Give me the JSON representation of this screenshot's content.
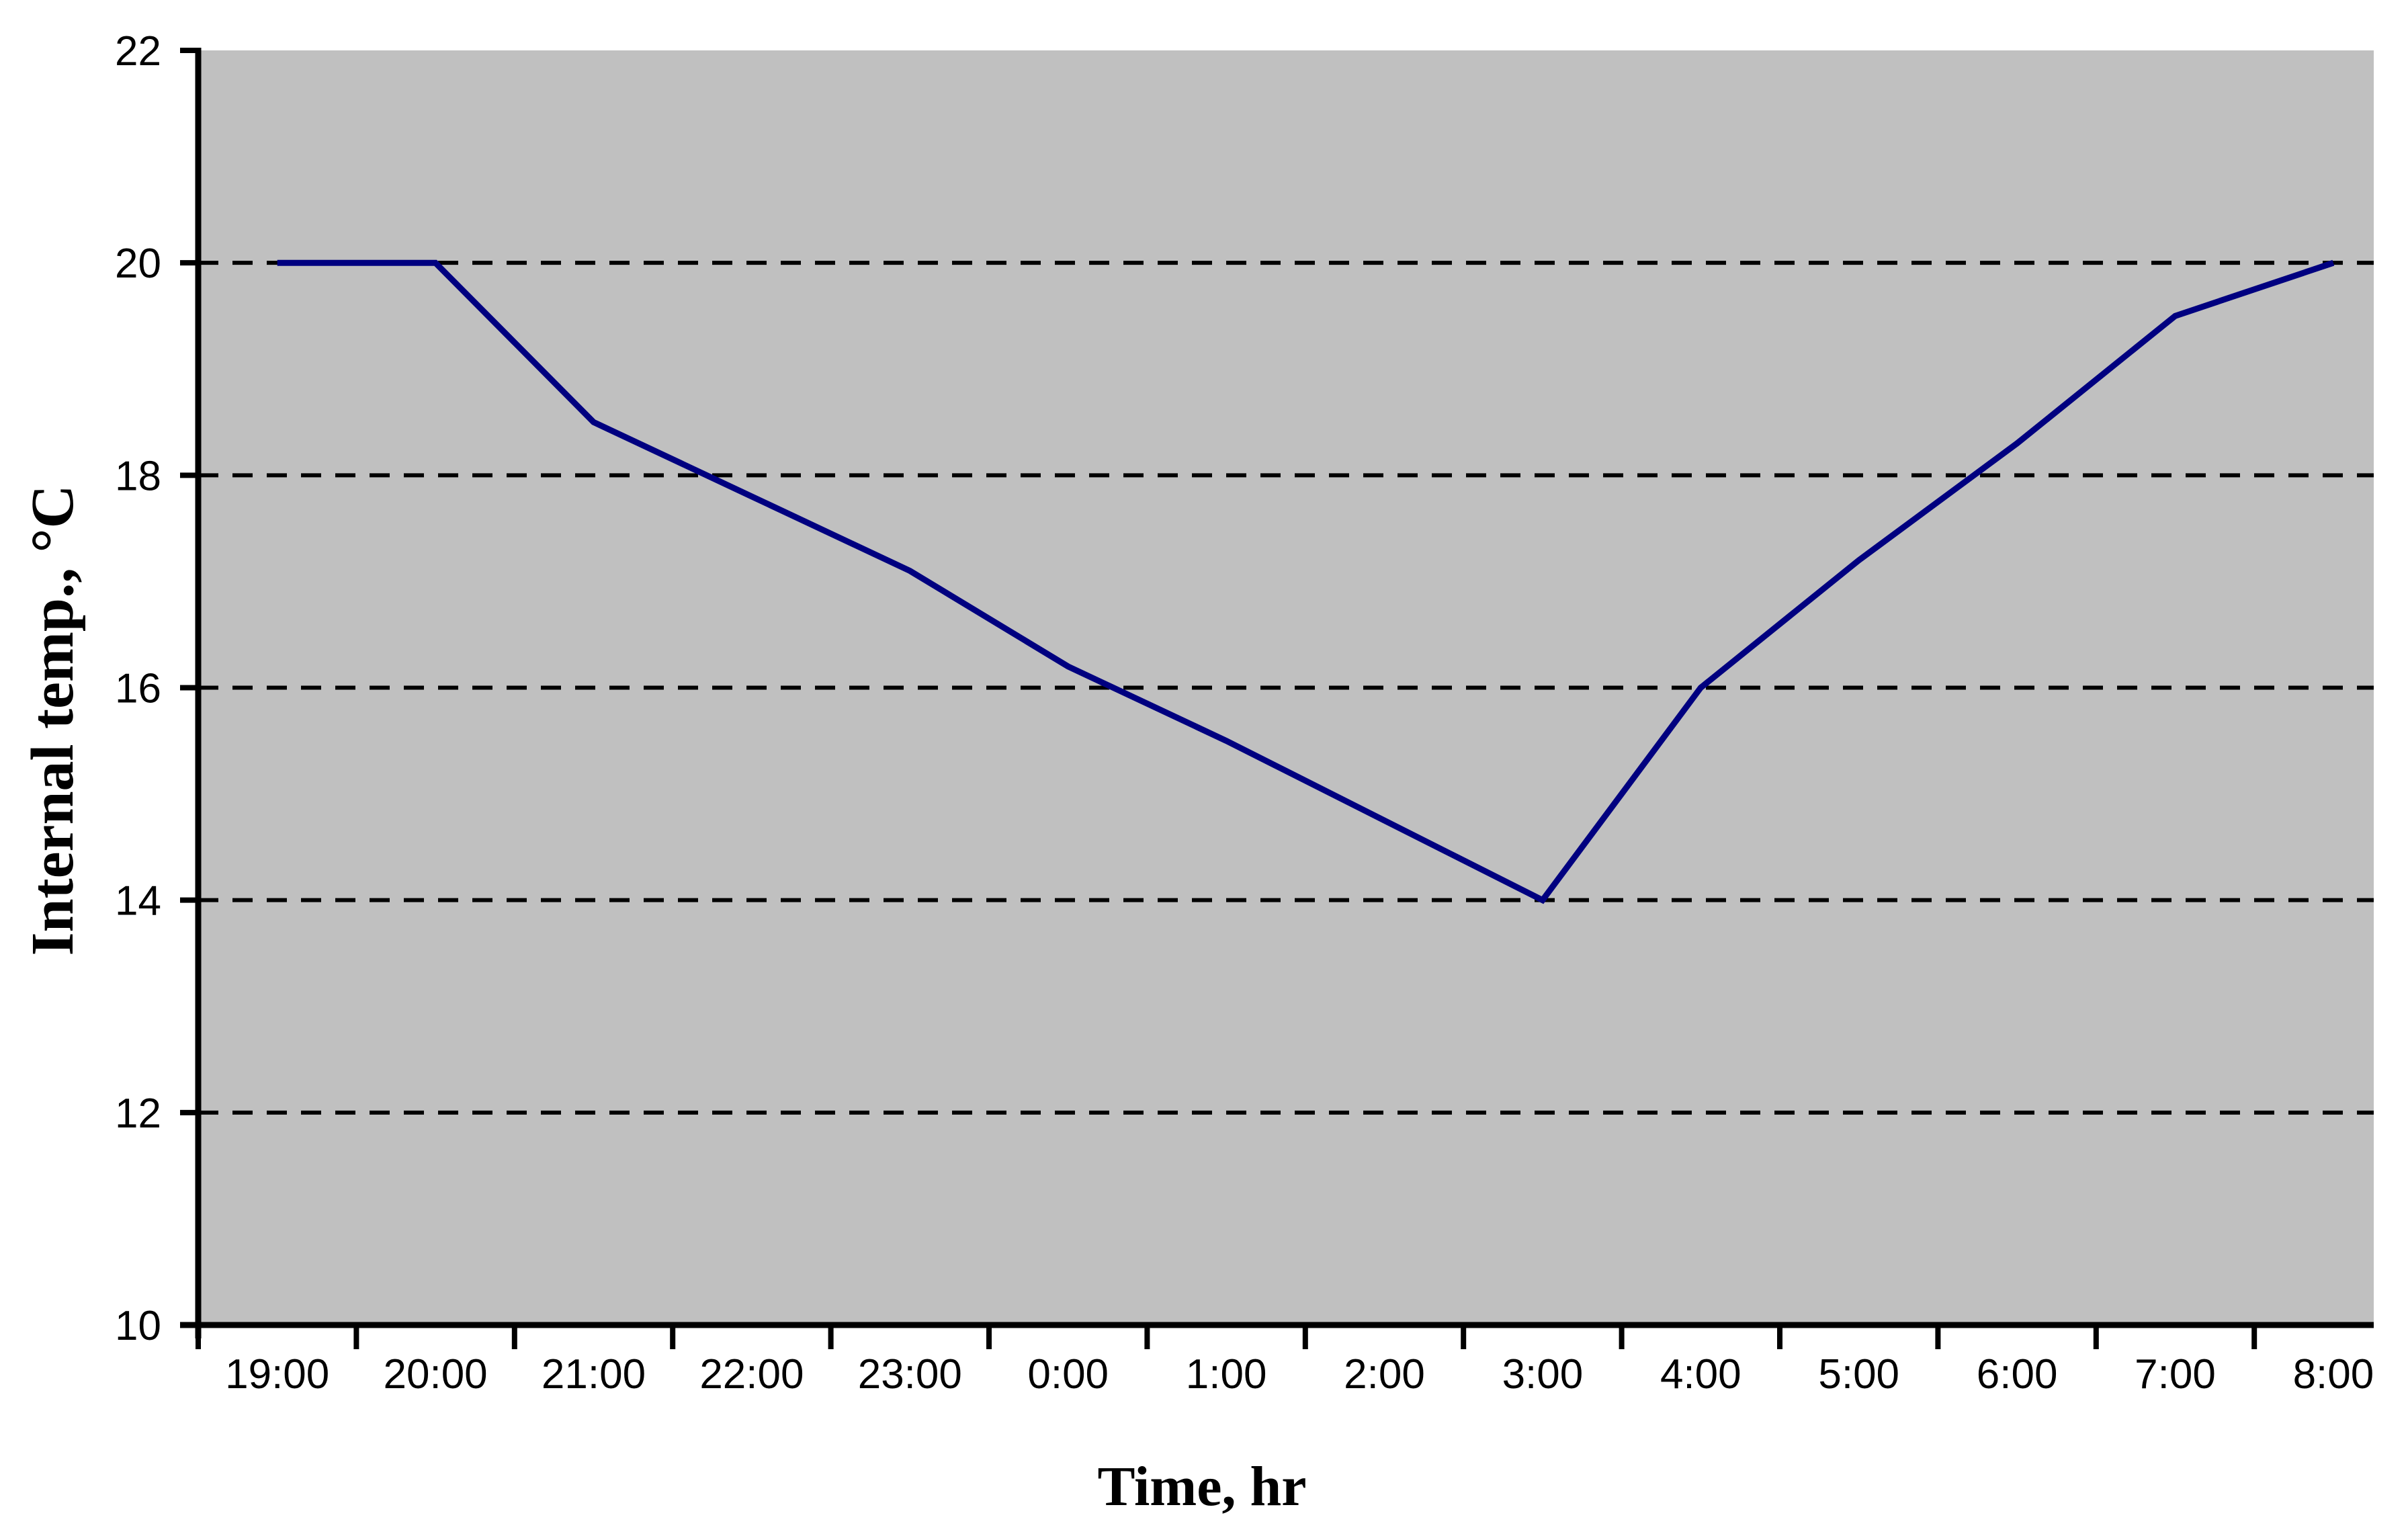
{
  "chart_data": {
    "type": "line",
    "title": "",
    "xlabel": "Time, hr",
    "ylabel": "Internal temp., °C",
    "categories": [
      "19:00",
      "20:00",
      "21:00",
      "22:00",
      "23:00",
      "0:00",
      "1:00",
      "2:00",
      "3:00",
      "4:00",
      "5:00",
      "6:00",
      "7:00",
      "8:00"
    ],
    "series": [
      {
        "name": "Internal temp.",
        "values": [
          20,
          20,
          18.5,
          17.8,
          17.1,
          16.2,
          15.5,
          14.75,
          14,
          16,
          17.2,
          18.3,
          19.5,
          20
        ]
      }
    ],
    "ylim": [
      10,
      22
    ],
    "yticks": [
      22,
      20,
      18,
      16,
      14,
      12,
      10
    ],
    "ytick_interval": 2,
    "grid": "horizontal dashed gridlines at 12, 14, 16, 18, 20",
    "legend_position": "none",
    "category_axis_style": "labels centered between boundary tick marks",
    "colors": {
      "series_line": "#000080",
      "plot_background": "#c0c0c0",
      "gridline": "#000000",
      "axis": "#000000",
      "text": "#000000",
      "page_background": "#ffffff"
    }
  }
}
